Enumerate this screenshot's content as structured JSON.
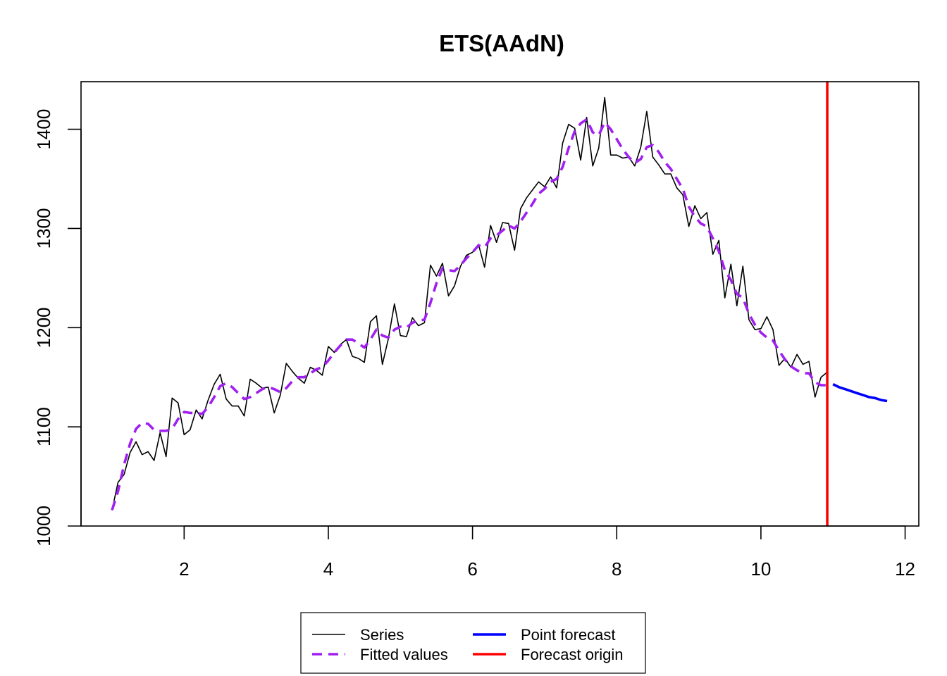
{
  "chart_data": {
    "type": "line",
    "title": "ETS(AAdN)",
    "xlabel": "",
    "ylabel": "",
    "xlim": [
      0.57,
      12.19
    ],
    "ylim": [
      1000,
      1448
    ],
    "x_ticks": [
      2,
      4,
      6,
      8,
      10,
      12
    ],
    "y_ticks": [
      1000,
      1100,
      1200,
      1300,
      1400
    ],
    "grid": false,
    "legend_position": "bottom",
    "forecast_origin": 10.92,
    "series": [
      {
        "name": "Series",
        "color": "#000000",
        "style": "solid",
        "x_start": 1,
        "x_step": 0.08333333,
        "values": [
          1016,
          1044,
          1052,
          1074,
          1085,
          1072,
          1075,
          1066,
          1094,
          1070,
          1129,
          1124,
          1092,
          1097,
          1117,
          1108,
          1127,
          1143,
          1153,
          1128,
          1121,
          1121,
          1111,
          1148,
          1144,
          1139,
          1140,
          1114,
          1132,
          1164,
          1156,
          1149,
          1144,
          1160,
          1157,
          1152,
          1181,
          1175,
          1183,
          1188,
          1171,
          1169,
          1165,
          1206,
          1212,
          1163,
          1189,
          1224,
          1192,
          1191,
          1210,
          1202,
          1205,
          1263,
          1252,
          1265,
          1232,
          1242,
          1262,
          1273,
          1276,
          1284,
          1261,
          1303,
          1286,
          1306,
          1305,
          1278,
          1320,
          1331,
          1339,
          1347,
          1342,
          1352,
          1341,
          1386,
          1405,
          1401,
          1369,
          1412,
          1363,
          1381,
          1432,
          1374,
          1374,
          1371,
          1372,
          1363,
          1382,
          1418,
          1372,
          1364,
          1355,
          1355,
          1341,
          1334,
          1302,
          1323,
          1310,
          1316,
          1274,
          1288,
          1230,
          1264,
          1222,
          1262,
          1208,
          1198,
          1199,
          1211,
          1198,
          1162,
          1169,
          1160,
          1173,
          1163,
          1166,
          1130,
          1150,
          1155
        ]
      },
      {
        "name": "Fitted values",
        "color": "#a020f0",
        "style": "dashed",
        "x_start": 1,
        "x_step": 0.08333333,
        "values": [
          1016,
          1035,
          1062,
          1083,
          1098,
          1104,
          1103,
          1097,
          1096,
          1096,
          1098,
          1108,
          1115,
          1114,
          1114,
          1113,
          1120,
          1130,
          1141,
          1144,
          1140,
          1134,
          1128,
          1130,
          1134,
          1138,
          1140,
          1138,
          1135,
          1139,
          1146,
          1150,
          1150,
          1154,
          1158,
          1160,
          1167,
          1175,
          1182,
          1188,
          1188,
          1184,
          1180,
          1188,
          1198,
          1192,
          1190,
          1198,
          1201,
          1200,
          1205,
          1207,
          1208,
          1225,
          1245,
          1260,
          1258,
          1257,
          1263,
          1270,
          1276,
          1283,
          1281,
          1290,
          1293,
          1298,
          1303,
          1300,
          1307,
          1316,
          1325,
          1335,
          1340,
          1347,
          1350,
          1362,
          1381,
          1398,
          1406,
          1410,
          1397,
          1394,
          1407,
          1400,
          1390,
          1380,
          1372,
          1366,
          1370,
          1382,
          1384,
          1377,
          1367,
          1360,
          1350,
          1340,
          1322,
          1312,
          1305,
          1302,
          1290,
          1277,
          1258,
          1248,
          1234,
          1230,
          1214,
          1203,
          1195,
          1190,
          1187,
          1177,
          1168,
          1161,
          1157,
          1154,
          1154,
          1145,
          1142,
          1142
        ]
      },
      {
        "name": "Point forecast",
        "color": "#0000ff",
        "style": "solid",
        "x": [
          11.0,
          11.083,
          11.167,
          11.25,
          11.333,
          11.417,
          11.5,
          11.583,
          11.667,
          11.75
        ],
        "values": [
          1143,
          1140,
          1138,
          1136,
          1134,
          1132,
          1130,
          1129,
          1127,
          1126
        ]
      },
      {
        "name": "Forecast origin",
        "color": "#ff0000",
        "style": "solid"
      }
    ]
  }
}
